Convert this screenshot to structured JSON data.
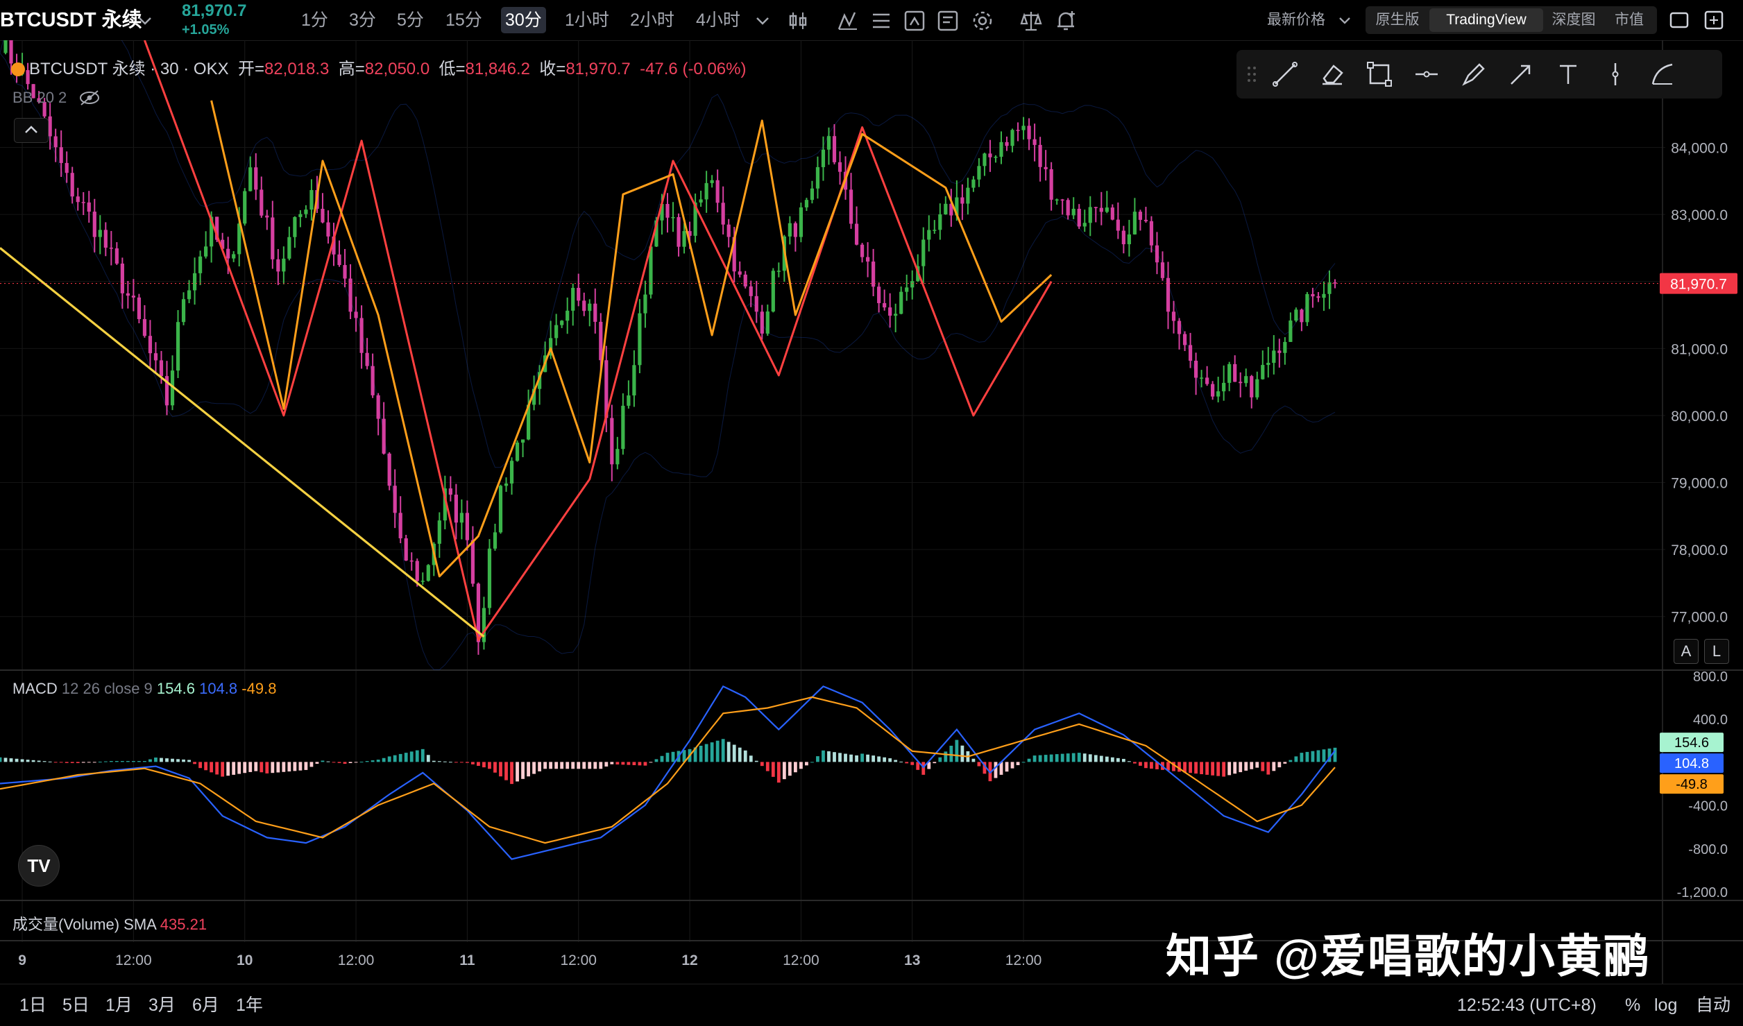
{
  "header": {
    "symbol": "BTCUSDT 永续",
    "last_price": "81,970.7",
    "change_pct": "+1.05%",
    "timeframes": [
      "1分",
      "3分",
      "5分",
      "15分",
      "30分",
      "1小时",
      "2小时",
      "4小时"
    ],
    "active_timeframe": "30分",
    "price_type": "最新价格",
    "views": [
      "原生版",
      "TradingView",
      "深度图",
      "市值"
    ],
    "active_view": "TradingView"
  },
  "legend": {
    "title": "BTCUSDT 永续 · 30 · OKX",
    "open_label": "开=",
    "open": "82,018.3",
    "high_label": "高=",
    "high": "82,050.0",
    "low_label": "低=",
    "low": "81,846.2",
    "close_label": "收=",
    "close": "81,970.7",
    "change": "-47.6 (-0.06%)",
    "bb": "BB 20 2"
  },
  "macd_legend": {
    "name": "MACD",
    "params": "12 26 close 9",
    "hist": "154.6",
    "macd": "104.8",
    "signal": "-49.8"
  },
  "volume_legend": {
    "name": "成交量(Volume)",
    "sma_label": "SMA",
    "sma": "435.21"
  },
  "bottom": {
    "ranges": [
      "1日",
      "5日",
      "1月",
      "3月",
      "6月",
      "1年"
    ],
    "time": "12:52:43 (UTC+8)",
    "pct": "%",
    "log": "log",
    "auto": "自动"
  },
  "axis_buttons": {
    "a": "A",
    "l": "L"
  },
  "tv_logo": "TV",
  "watermark": "知乎 @爱唱歌的小黄鹂",
  "colors": {
    "up": "#26a69a",
    "down": "#f23645",
    "zigzag_red": "#ff4040",
    "zigzag_orange": "#ff9f1a",
    "trendline": "#f5d142",
    "candle_pink": "#d53fa0",
    "candle_green": "#3bb44a"
  },
  "chart_data": {
    "type": "candlestick",
    "price_axis": {
      "ticks": [
        84000,
        83000,
        82000,
        81000,
        80000,
        79000,
        78000,
        77000
      ],
      "tick_labels": [
        "84,000.0",
        "83,000.0",
        "",
        "81,000.0",
        "80,000.0",
        "79,000.0",
        "78,000.0",
        "77,000.0"
      ],
      "range": [
        76200,
        85600
      ],
      "last": 81970.7,
      "last_label": "81,970.7"
    },
    "time_axis": {
      "labels": [
        "9",
        "12:00",
        "10",
        "12:00",
        "11",
        "12:00",
        "12",
        "12:00",
        "13",
        "12:00"
      ],
      "bold": [
        true,
        false,
        true,
        false,
        true,
        false,
        true,
        false,
        true,
        false
      ]
    },
    "price_path": [
      [
        0,
        85600
      ],
      [
        6,
        84800
      ],
      [
        12,
        83500
      ],
      [
        18,
        82700
      ],
      [
        24,
        81600
      ],
      [
        30,
        80200
      ],
      [
        33,
        81800
      ],
      [
        38,
        82800
      ],
      [
        41,
        82200
      ],
      [
        45,
        83700
      ],
      [
        50,
        82200
      ],
      [
        56,
        83400
      ],
      [
        62,
        82000
      ],
      [
        68,
        79900
      ],
      [
        72,
        78000
      ],
      [
        76,
        77500
      ],
      [
        80,
        78800
      ],
      [
        84,
        78300
      ],
      [
        86,
        76750
      ],
      [
        90,
        78900
      ],
      [
        95,
        80000
      ],
      [
        99,
        81000
      ],
      [
        103,
        82000
      ],
      [
        107,
        81500
      ],
      [
        110,
        79200
      ],
      [
        114,
        80800
      ],
      [
        118,
        83100
      ],
      [
        123,
        82600
      ],
      [
        128,
        83600
      ],
      [
        133,
        82000
      ],
      [
        137,
        81400
      ],
      [
        141,
        82600
      ],
      [
        146,
        83200
      ],
      [
        149,
        84200
      ],
      [
        153,
        82900
      ],
      [
        157,
        81900
      ],
      [
        160,
        81400
      ],
      [
        165,
        82300
      ],
      [
        170,
        83000
      ],
      [
        175,
        83500
      ],
      [
        180,
        84100
      ],
      [
        184,
        84300
      ],
      [
        189,
        83400
      ],
      [
        194,
        82900
      ],
      [
        198,
        83200
      ],
      [
        202,
        82400
      ],
      [
        205,
        83100
      ],
      [
        209,
        81900
      ],
      [
        213,
        81200
      ],
      [
        217,
        80300
      ],
      [
        221,
        80700
      ],
      [
        225,
        80300
      ],
      [
        229,
        81000
      ],
      [
        233,
        81400
      ],
      [
        237,
        81900
      ],
      [
        240,
        81970.7
      ]
    ],
    "zigzag_red": [
      [
        26,
        85600
      ],
      [
        51,
        80000
      ],
      [
        65,
        84100
      ],
      [
        86,
        76650
      ],
      [
        106,
        79050
      ],
      [
        121,
        83800
      ],
      [
        140,
        80600
      ],
      [
        155,
        84300
      ],
      [
        175,
        80000
      ],
      [
        189,
        82000
      ]
    ],
    "zigzag_orange": [
      [
        38,
        84700
      ],
      [
        51,
        80100
      ],
      [
        58,
        83800
      ],
      [
        68,
        81500
      ],
      [
        79,
        77600
      ],
      [
        86,
        78200
      ],
      [
        99,
        81000
      ],
      [
        106,
        79300
      ],
      [
        112,
        83300
      ],
      [
        121,
        83600
      ],
      [
        128,
        81200
      ],
      [
        137,
        84400
      ],
      [
        143,
        81500
      ],
      [
        155,
        84200
      ],
      [
        170,
        83400
      ],
      [
        180,
        81400
      ],
      [
        189,
        82100
      ]
    ],
    "trendline": [
      [
        0,
        82500
      ],
      [
        87,
        76700
      ]
    ],
    "macd": {
      "axis_ticks": [
        800,
        400,
        -400,
        -800,
        -1200
      ],
      "axis_tick_labels": [
        "800.0",
        "400.0",
        "-400.0",
        "-800.0",
        "-1,200.0"
      ],
      "range": [
        -1250,
        850
      ],
      "hist_last": 154.6,
      "macd_last": 104.8,
      "signal_last": -49.8,
      "macd_line": [
        [
          0,
          -200
        ],
        [
          12,
          -150
        ],
        [
          20,
          -80
        ],
        [
          28,
          -40
        ],
        [
          34,
          -150
        ],
        [
          40,
          -500
        ],
        [
          48,
          -700
        ],
        [
          55,
          -750
        ],
        [
          62,
          -600
        ],
        [
          70,
          -300
        ],
        [
          76,
          -100
        ],
        [
          84,
          -450
        ],
        [
          92,
          -900
        ],
        [
          100,
          -800
        ],
        [
          108,
          -700
        ],
        [
          116,
          -400
        ],
        [
          124,
          200
        ],
        [
          130,
          700
        ],
        [
          134,
          600
        ],
        [
          140,
          300
        ],
        [
          148,
          700
        ],
        [
          155,
          550
        ],
        [
          160,
          300
        ],
        [
          166,
          -50
        ],
        [
          172,
          300
        ],
        [
          178,
          -100
        ],
        [
          186,
          300
        ],
        [
          194,
          450
        ],
        [
          202,
          250
        ],
        [
          208,
          0
        ],
        [
          214,
          -250
        ],
        [
          220,
          -500
        ],
        [
          228,
          -650
        ],
        [
          234,
          -300
        ],
        [
          240,
          105
        ]
      ],
      "signal_line": [
        [
          0,
          -250
        ],
        [
          14,
          -120
        ],
        [
          26,
          -60
        ],
        [
          36,
          -200
        ],
        [
          46,
          -550
        ],
        [
          58,
          -700
        ],
        [
          68,
          -400
        ],
        [
          78,
          -200
        ],
        [
          88,
          -600
        ],
        [
          98,
          -750
        ],
        [
          110,
          -600
        ],
        [
          120,
          -200
        ],
        [
          130,
          450
        ],
        [
          138,
          500
        ],
        [
          146,
          600
        ],
        [
          154,
          500
        ],
        [
          164,
          100
        ],
        [
          174,
          50
        ],
        [
          184,
          200
        ],
        [
          194,
          350
        ],
        [
          206,
          150
        ],
        [
          216,
          -200
        ],
        [
          226,
          -550
        ],
        [
          234,
          -400
        ],
        [
          240,
          -50
        ]
      ]
    },
    "volume": {
      "sma_label": "SMA",
      "sma": 435.21
    }
  }
}
